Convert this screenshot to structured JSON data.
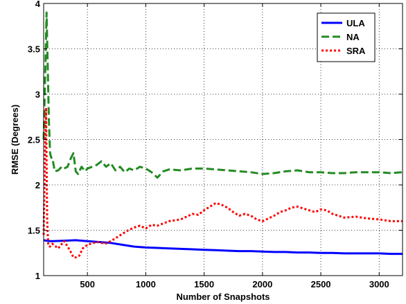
{
  "chart_data": {
    "type": "line",
    "title": "",
    "xlabel": "Number of Snapshots",
    "ylabel": "RMSE (Degrees)",
    "xlim": [
      125,
      3200
    ],
    "ylim": [
      1,
      4
    ],
    "xticks": [
      500,
      1000,
      1500,
      2000,
      2500,
      3000
    ],
    "yticks": [
      1,
      1.5,
      2,
      2.5,
      3,
      3.5,
      4
    ],
    "ytick_labels": [
      "1",
      "1.5",
      "2",
      "2.5",
      "3",
      "3.5",
      "4"
    ],
    "grid": true,
    "legend_position": "top-right",
    "series": [
      {
        "name": "ULA",
        "color": "#0000ff",
        "style": "solid",
        "x": [
          125,
          150,
          175,
          200,
          300,
          400,
          500,
          600,
          700,
          800,
          900,
          1000,
          1100,
          1200,
          1300,
          1400,
          1500,
          1600,
          1700,
          1800,
          1900,
          2000,
          2100,
          2200,
          2300,
          2400,
          2500,
          2600,
          2700,
          2800,
          2900,
          3000,
          3100,
          3200
        ],
        "y": [
          1.39,
          1.385,
          1.38,
          1.38,
          1.385,
          1.39,
          1.38,
          1.37,
          1.36,
          1.34,
          1.32,
          1.31,
          1.305,
          1.3,
          1.295,
          1.29,
          1.285,
          1.28,
          1.275,
          1.27,
          1.27,
          1.265,
          1.26,
          1.26,
          1.255,
          1.255,
          1.25,
          1.25,
          1.245,
          1.245,
          1.245,
          1.245,
          1.24,
          1.24
        ]
      },
      {
        "name": "NA",
        "color": "#228b22",
        "style": "dashed",
        "x": [
          125,
          140,
          150,
          160,
          170,
          180,
          190,
          200,
          220,
          250,
          280,
          300,
          330,
          360,
          380,
          400,
          420,
          450,
          480,
          500,
          540,
          580,
          620,
          660,
          700,
          740,
          780,
          820,
          860,
          900,
          950,
          1000,
          1050,
          1100,
          1150,
          1200,
          1300,
          1400,
          1500,
          1600,
          1700,
          1800,
          1900,
          2000,
          2100,
          2200,
          2300,
          2400,
          2500,
          2600,
          2700,
          2800,
          2900,
          3000,
          3100,
          3200
        ],
        "y": [
          2.5,
          3.3,
          3.9,
          3.3,
          2.7,
          2.35,
          2.3,
          2.3,
          2.15,
          2.16,
          2.2,
          2.18,
          2.2,
          2.3,
          2.35,
          2.15,
          2.12,
          2.2,
          2.15,
          2.18,
          2.2,
          2.22,
          2.26,
          2.2,
          2.24,
          2.16,
          2.2,
          2.14,
          2.18,
          2.16,
          2.2,
          2.18,
          2.14,
          2.08,
          2.15,
          2.17,
          2.16,
          2.18,
          2.18,
          2.17,
          2.16,
          2.15,
          2.14,
          2.12,
          2.13,
          2.15,
          2.16,
          2.14,
          2.14,
          2.13,
          2.13,
          2.14,
          2.14,
          2.14,
          2.13,
          2.14
        ]
      },
      {
        "name": "SRA",
        "color": "#ff0000",
        "style": "dotted",
        "x": [
          125,
          135,
          145,
          155,
          165,
          180,
          200,
          250,
          300,
          350,
          380,
          400,
          430,
          460,
          500,
          550,
          600,
          650,
          700,
          750,
          800,
          850,
          900,
          950,
          1000,
          1050,
          1100,
          1200,
          1300,
          1400,
          1450,
          1500,
          1550,
          1600,
          1650,
          1700,
          1750,
          1800,
          1850,
          1900,
          1950,
          2000,
          2050,
          2100,
          2150,
          2200,
          2250,
          2300,
          2350,
          2400,
          2450,
          2500,
          2550,
          2600,
          2700,
          2800,
          2900,
          3000,
          3100,
          3200
        ],
        "y": [
          1.45,
          2.2,
          2.85,
          1.6,
          1.33,
          1.32,
          1.35,
          1.3,
          1.38,
          1.28,
          1.2,
          1.2,
          1.22,
          1.3,
          1.34,
          1.36,
          1.37,
          1.35,
          1.38,
          1.42,
          1.46,
          1.5,
          1.53,
          1.55,
          1.52,
          1.56,
          1.55,
          1.6,
          1.62,
          1.68,
          1.67,
          1.72,
          1.76,
          1.8,
          1.78,
          1.75,
          1.7,
          1.66,
          1.68,
          1.66,
          1.62,
          1.6,
          1.63,
          1.66,
          1.7,
          1.72,
          1.75,
          1.76,
          1.74,
          1.72,
          1.7,
          1.73,
          1.72,
          1.68,
          1.64,
          1.65,
          1.63,
          1.62,
          1.6,
          1.6
        ]
      }
    ]
  }
}
